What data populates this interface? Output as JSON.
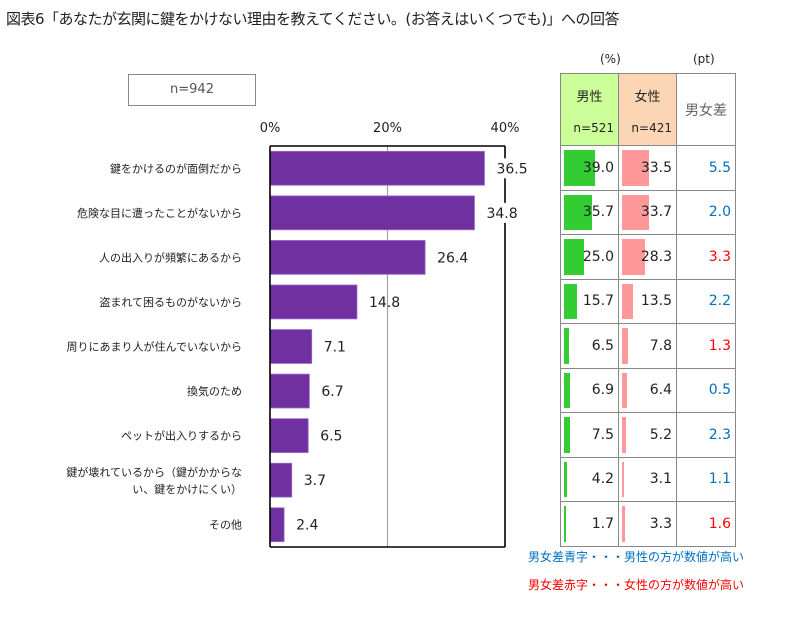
{
  "title": "図表6「あなたが玄関に鍵をかけない理由を教えてください。(お答えはいくつでも)」への回答",
  "sample_box": "n=942",
  "chart_data": {
    "type": "bar",
    "orientation": "horizontal",
    "title": "図表6「あなたが玄関に鍵をかけない理由を教えてください。(お答えはいくつでも)」への回答",
    "xlabel": "",
    "ylabel": "",
    "xlim": [
      0,
      40
    ],
    "x_ticks": [
      0,
      20,
      40
    ],
    "x_tick_labels": [
      "0%",
      "20%",
      "40%"
    ],
    "grid": true,
    "bar_color": "#7030a0",
    "categories": [
      "鍵をかけるのが面倒だから",
      "危険な目に遭ったことがないから",
      "人の出入りが頻繁にあるから",
      "盗まれて困るものがないから",
      "周りにあまり人が住んでいないから",
      "換気のため",
      "ペットが出入りするから",
      "鍵が壊れているから（鍵がかからな|い、鍵をかけにくい）",
      "その他"
    ],
    "values": [
      36.5,
      34.8,
      26.4,
      14.8,
      7.1,
      6.7,
      6.5,
      3.7,
      2.4
    ],
    "value_labels": [
      "36.5",
      "34.8",
      "26.4",
      "14.8",
      "7.1",
      "6.7",
      "6.5",
      "3.7",
      "2.4"
    ],
    "annotation": "n=942"
  },
  "table": {
    "unit_percent": "(%)",
    "unit_pt": "(pt)",
    "male": {
      "label": "男性",
      "n": "n=521",
      "header_color": "#ccff99",
      "bar_color": "#33cc33"
    },
    "female": {
      "label": "女性",
      "n": "n=421",
      "header_color": "#fcd5b4",
      "bar_color": "#ff9999"
    },
    "diff": {
      "label": "男女差"
    },
    "blue": "#0070c0",
    "red": "#ff0000",
    "rows": [
      {
        "male": 39.0,
        "male_label": "39.0",
        "female": 33.5,
        "female_label": "33.5",
        "diff": "5.5",
        "higher": "male"
      },
      {
        "male": 35.7,
        "male_label": "35.7",
        "female": 33.7,
        "female_label": "33.7",
        "diff": "2.0",
        "higher": "male"
      },
      {
        "male": 25.0,
        "male_label": "25.0",
        "female": 28.3,
        "female_label": "28.3",
        "diff": "3.3",
        "higher": "female"
      },
      {
        "male": 15.7,
        "male_label": "15.7",
        "female": 13.5,
        "female_label": "13.5",
        "diff": "2.2",
        "higher": "male"
      },
      {
        "male": 6.5,
        "male_label": "6.5",
        "female": 7.8,
        "female_label": "7.8",
        "diff": "1.3",
        "higher": "female"
      },
      {
        "male": 6.9,
        "male_label": "6.9",
        "female": 6.4,
        "female_label": "6.4",
        "diff": "0.5",
        "higher": "male"
      },
      {
        "male": 7.5,
        "male_label": "7.5",
        "female": 5.2,
        "female_label": "5.2",
        "diff": "2.3",
        "higher": "male"
      },
      {
        "male": 4.2,
        "male_label": "4.2",
        "female": 3.1,
        "female_label": "3.1",
        "diff": "1.1",
        "higher": "male"
      },
      {
        "male": 1.7,
        "male_label": "1.7",
        "female": 3.3,
        "female_label": "3.3",
        "diff": "1.6",
        "higher": "female"
      }
    ]
  },
  "notes": {
    "blue": "男女差青字・・・男性の方が数値が高い",
    "red": "男女差赤字・・・女性の方が数値が高い"
  }
}
